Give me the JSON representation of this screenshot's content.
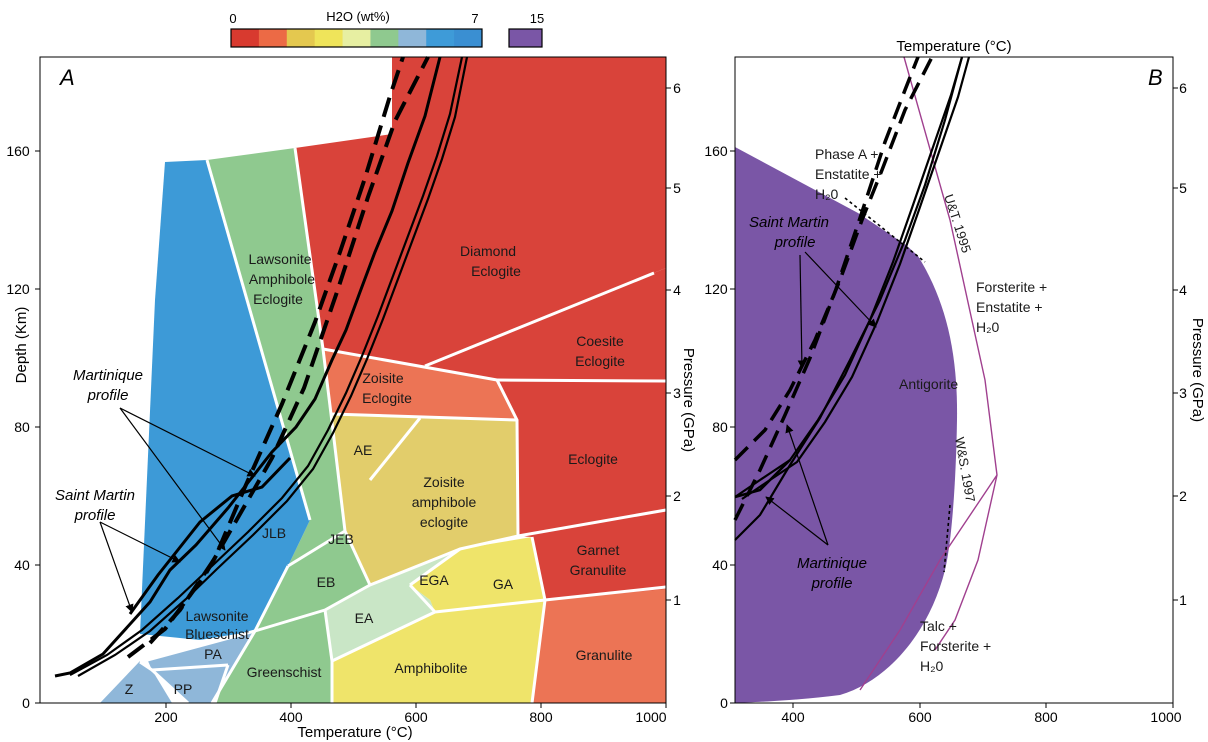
{
  "colorbar": {
    "title": "H2O (wt%)",
    "min_label": "0",
    "max_label": "7",
    "extra_label": "15",
    "bins": [
      "#d83a2f",
      "#ec6a45",
      "#e4c84f",
      "#efe45a",
      "#e7efa2",
      "#8fc98f",
      "#8fb7d9",
      "#3e9bd8",
      "#3a8fd2"
    ],
    "extra_color": "#7a56a6"
  },
  "panel_a": {
    "letter": "A",
    "xlabel": "Temperature (°C)",
    "ylabel_left": "Depth (Km)",
    "ylabel_right": "Pressure (GPa)",
    "x_ticks": [
      "200",
      "400",
      "600",
      "800",
      "1000"
    ],
    "y_ticks_left": [
      "0",
      "40",
      "80",
      "120",
      "160"
    ],
    "y_ticks_right": [
      "1",
      "2",
      "3",
      "4",
      "5",
      "6"
    ],
    "facies": [
      {
        "id": "diamond-eclogite",
        "lines": [
          "Diamond",
          "Eclogite"
        ],
        "color": "#d9433a"
      },
      {
        "id": "coesite-eclogite",
        "lines": [
          "Coesite",
          "Eclogite"
        ],
        "color": "#d9433a"
      },
      {
        "id": "eclogite",
        "lines": [
          "Eclogite"
        ],
        "color": "#d9433a"
      },
      {
        "id": "garnet-granulite",
        "lines": [
          "Garnet",
          "Granulite"
        ],
        "color": "#d9433a"
      },
      {
        "id": "granulite",
        "lines": [
          "Granulite"
        ],
        "color": "#ec7455"
      },
      {
        "id": "zoisite-eclogite",
        "lines": [
          "Zoisite",
          "Eclogite"
        ],
        "color": "#ec7455"
      },
      {
        "id": "zoisite-amphibole-eclogite",
        "lines": [
          "Zoisite",
          "amphibole",
          "eclogite"
        ],
        "color": "#e2cd6b"
      },
      {
        "id": "ae",
        "lines": [
          "AE"
        ],
        "color": "#e2cd6b"
      },
      {
        "id": "ga",
        "lines": [
          "GA"
        ],
        "color": "#efe46a"
      },
      {
        "id": "amphibolite",
        "lines": [
          "Amphibolite"
        ],
        "color": "#efe46a"
      },
      {
        "id": "ega",
        "lines": [
          "EGA"
        ],
        "color": "#c9e6c6"
      },
      {
        "id": "ea",
        "lines": [
          "EA"
        ],
        "color": "#c9e6c6"
      },
      {
        "id": "greenschist",
        "lines": [
          "Greenschist"
        ],
        "color": "#8fc98f"
      },
      {
        "id": "eb",
        "lines": [
          "EB"
        ],
        "color": "#8fc98f"
      },
      {
        "id": "jeb",
        "lines": [
          "JEB"
        ],
        "color": "#8fc98f"
      },
      {
        "id": "lawsonite-amphibole-eclogite",
        "lines": [
          "Lawsonite",
          "Amphibole",
          "Eclogite"
        ],
        "color": "#8fc98f"
      },
      {
        "id": "jlb",
        "lines": [
          "JLB"
        ],
        "color": "#3d9ad7"
      },
      {
        "id": "lawsonite-blueschist",
        "lines": [
          "Lawsonite",
          "Blueschist"
        ],
        "color": "#3d9ad7"
      },
      {
        "id": "pa",
        "lines": [
          "PA"
        ],
        "color": "#8fb7d9"
      },
      {
        "id": "pp",
        "lines": [
          "PP"
        ],
        "color": "#8fb7d9"
      },
      {
        "id": "z",
        "lines": [
          "Z"
        ],
        "color": "#8fb7d9"
      }
    ],
    "annotations": {
      "martinique": [
        "Martinique",
        "profile"
      ],
      "saint_martin": [
        "Saint Martin",
        "profile"
      ]
    }
  },
  "panel_b": {
    "letter": "B",
    "title": "Temperature (°C)",
    "ylabel_right": "Pressure (GPa)",
    "x_ticks": [
      "400",
      "600",
      "800",
      "1000"
    ],
    "y_ticks_left": [
      "0",
      "40",
      "80",
      "120",
      "160"
    ],
    "y_ticks_right": [
      "1",
      "2",
      "3",
      "4",
      "5",
      "6"
    ],
    "fill_color": "#7a56a6",
    "field_label": "Antigorite",
    "reactions": {
      "phase_a": [
        "Phase A +",
        "Enstatite +",
        "H₂0"
      ],
      "forsterite": [
        "Forsterite +",
        "Enstatite +",
        "H₂0"
      ],
      "talc": [
        "Talc +",
        "Forsterite +",
        "H₂0"
      ]
    },
    "curve_labels": {
      "ut": "U&T. 1995",
      "ws": "W&S. 1997"
    },
    "annotations": {
      "saint_martin": [
        "Saint Martin",
        "profile"
      ],
      "martinique": [
        "Martinique",
        "profile"
      ]
    }
  }
}
